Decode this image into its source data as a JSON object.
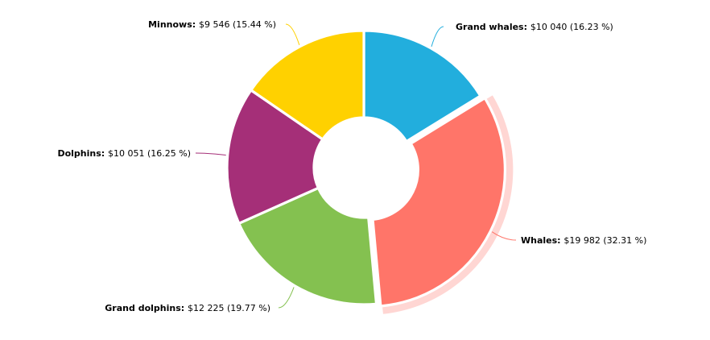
{
  "chart_data": {
    "type": "pie",
    "donut": true,
    "currency_symbol": "$",
    "slices": [
      {
        "label": "Grand whales",
        "value": 10040,
        "percent": "16.23 %",
        "value_text": "10 040",
        "color": "#22AEDD"
      },
      {
        "label": "Whales",
        "value": 19982,
        "percent": "32.31 %",
        "value_text": "19 982",
        "color": "#FF7569",
        "highlighted": true,
        "highlight_color": "#FFD6D3"
      },
      {
        "label": "Grand dolphins",
        "value": 12225,
        "percent": "19.77 %",
        "value_text": "12 225",
        "color": "#84C150"
      },
      {
        "label": "Dolphins",
        "value": 10051,
        "percent": "16.25 %",
        "value_text": "10 051",
        "color": "#A52F78"
      },
      {
        "label": "Minnows",
        "value": 9546,
        "percent": "15.44 %",
        "value_text": "9 546",
        "color": "#FFD100"
      }
    ]
  }
}
